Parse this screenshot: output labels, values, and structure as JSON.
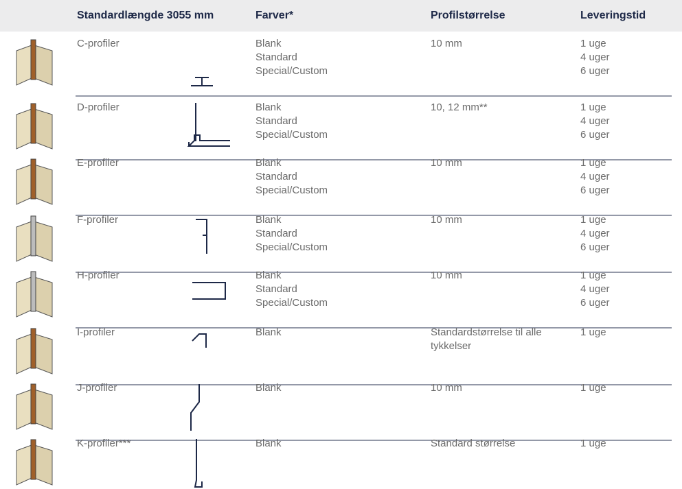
{
  "header": {
    "columns": [
      "Standardlængde 3055 mm",
      "Farver*",
      "Profilstørrelse",
      "Leveringstid"
    ]
  },
  "rows": [
    {
      "name": "C-profiler",
      "colors": [
        "Blank",
        "Standard",
        "Special/Custom"
      ],
      "size": "10 mm",
      "delivery": [
        "1 uge",
        "4 uger",
        "6 uger"
      ]
    },
    {
      "name": "D-profiler",
      "colors": [
        "Blank",
        "Standard",
        "Special/Custom"
      ],
      "size": "10, 12 mm**",
      "delivery": [
        "1 uge",
        "4 uger",
        "6 uger"
      ]
    },
    {
      "name": "E-profiler",
      "colors": [
        "Blank",
        "Standard",
        "Special/Custom"
      ],
      "size": "10 mm",
      "delivery": [
        "1 uge",
        "4 uger",
        "6 uger"
      ]
    },
    {
      "name": "F-profiler",
      "colors": [
        "Blank",
        "Standard",
        "Special/Custom"
      ],
      "size": "10 mm",
      "delivery": [
        "1 uge",
        "4 uger",
        "6 uger"
      ]
    },
    {
      "name": "H-profiler",
      "colors": [
        "Blank",
        "Standard",
        "Special/Custom"
      ],
      "size": "10 mm",
      "delivery": [
        "1 uge",
        "4 uger",
        "6 uger"
      ]
    },
    {
      "name": "I-profiler",
      "colors": [
        "Blank"
      ],
      "size": "Standardstørrelse til alle tykkelser",
      "delivery": [
        "1 uge"
      ]
    },
    {
      "name": "J-profiler",
      "colors": [
        "Blank"
      ],
      "size": "10 mm",
      "delivery": [
        "1 uge"
      ]
    },
    {
      "name": "K-profiler***",
      "colors": [
        "Blank"
      ],
      "size": "Standard størrelse",
      "delivery": [
        "1 uge"
      ]
    }
  ]
}
